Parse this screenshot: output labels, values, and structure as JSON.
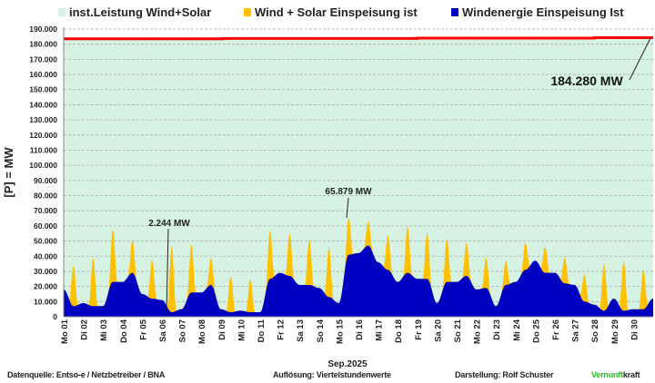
{
  "legend": [
    {
      "label": "inst.Leistung Wind+Solar",
      "color": "#d6f2e2"
    },
    {
      "label": "Wind + Solar Einspeisung ist",
      "color": "#ffc000"
    },
    {
      "label": "Windenergie Einspeisung Ist",
      "color": "#0000c0"
    }
  ],
  "footer": {
    "source": "Datenquelle:  Entso-e  / Netzbetreiber / BNA",
    "resolution": "Auflösung: Viertelstundenwerte",
    "author": "Darstellung:  Rolf Schuster",
    "brand_a": "Vernunft",
    "brand_b": "kraft",
    "brand_color": "#22bb22"
  },
  "chart_data": {
    "type": "area",
    "ylabel": "[P] =  MW",
    "xlabel": "Sep.2025",
    "ylim": [
      0,
      190000
    ],
    "yticks": [
      "0",
      "10.000",
      "20.000",
      "30.000",
      "40.000",
      "50.000",
      "60.000",
      "70.000",
      "80.000",
      "90.000",
      "100.000",
      "110.000",
      "120.000",
      "130.000",
      "140.000",
      "150.000",
      "160.000",
      "170.000",
      "180.000",
      "190.000"
    ],
    "grid": true,
    "legend_position": "top",
    "categories": [
      "Mo 01",
      "Di 02",
      "Mi 03",
      "Do 04",
      "Fr 05",
      "Sa 06",
      "So 07",
      "Mo 08",
      "Di 09",
      "Mi 10",
      "Do 11",
      "Fr 12",
      "Sa 13",
      "So 14",
      "Mo 15",
      "Di 16",
      "Mi 17",
      "Do 18",
      "Fr 19",
      "Sa 20",
      "So 21",
      "Mo 22",
      "Di 23",
      "Mi 24",
      "Do 25",
      "Fr 26",
      "Sa 27",
      "So 28",
      "Mo 29",
      "Di 30"
    ],
    "series": [
      {
        "name": "Wind + Solar Einspeisung ist",
        "daily_peak_mw": [
          34000,
          39000,
          58000,
          51000,
          38000,
          47000,
          48000,
          39000,
          27000,
          25000,
          57000,
          55000,
          51000,
          46000,
          65879,
          63000,
          54000,
          60000,
          56000,
          52000,
          49000,
          39000,
          37000,
          49000,
          46000,
          39000,
          28000,
          35000,
          37000,
          31000
        ]
      },
      {
        "name": "Windenergie Einspeisung Ist",
        "noon_mw": [
          7000,
          7000,
          23000,
          29000,
          12000,
          3000,
          16000,
          21000,
          3000,
          3000,
          25000,
          27000,
          21000,
          13000,
          41000,
          47000,
          31000,
          29000,
          25000,
          23000,
          27000,
          19000,
          21000,
          31000,
          29000,
          22000,
          10000,
          4000,
          4000,
          5000
        ],
        "midnight_mw": [
          18000,
          9000,
          7000,
          23000,
          15000,
          11000,
          5000,
          16000,
          5000,
          4000,
          3000,
          29000,
          21000,
          19000,
          9000,
          42000,
          36000,
          23000,
          25000,
          9000,
          23000,
          18000,
          7000,
          23000,
          37000,
          29000,
          21000,
          8000,
          12000,
          5000,
          12000
        ]
      },
      {
        "name": "inst.Leistung Wind+Solar",
        "start_mw": 183500,
        "end_mw": 184280
      }
    ],
    "annotations": [
      "2.244 MW",
      "65.879 MW",
      "184.280 MW"
    ]
  }
}
